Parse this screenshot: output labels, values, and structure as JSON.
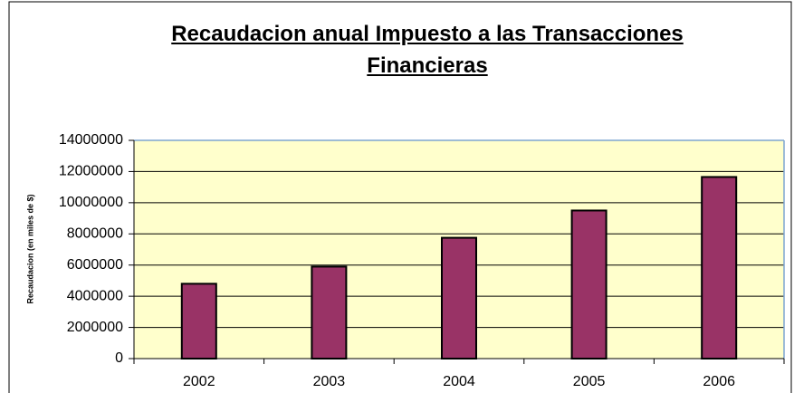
{
  "chart_data": {
    "type": "bar",
    "title": "Recaudacion anual Impuesto a las Transacciones Financieras",
    "y_label": "Recaudacion (en miles de $)",
    "categories": [
      "2002",
      "2003",
      "2004",
      "2005",
      "2006"
    ],
    "values": [
      4800000,
      5900000,
      7750000,
      9500000,
      11650000
    ],
    "color": "#993366",
    "ylim": [
      0,
      14000000
    ],
    "yticks": [
      0,
      2000000,
      4000000,
      6000000,
      8000000,
      10000000,
      12000000,
      14000000
    ],
    "grid": true
  }
}
